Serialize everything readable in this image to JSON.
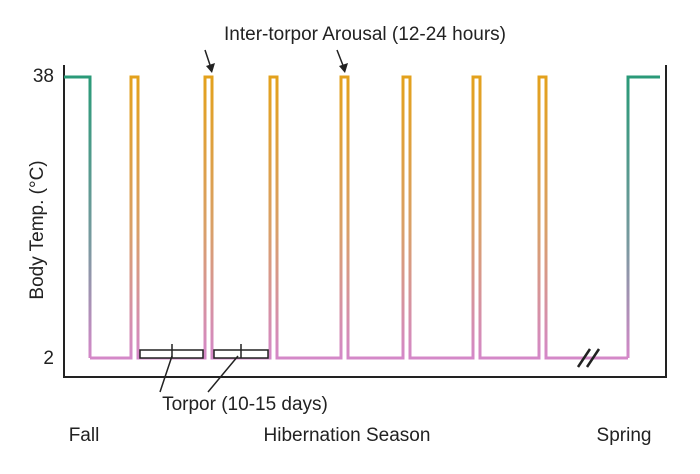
{
  "annotations": {
    "arousal": "Inter-torpor Arousal (12-24 hours)",
    "torpor": "Torpor (10-15 days)"
  },
  "axis": {
    "y_label": "Body Temp. (°C)",
    "ticks": [
      "38",
      "2"
    ]
  },
  "seasons": [
    "Fall",
    "Hibernation Season",
    "Spring"
  ]
}
